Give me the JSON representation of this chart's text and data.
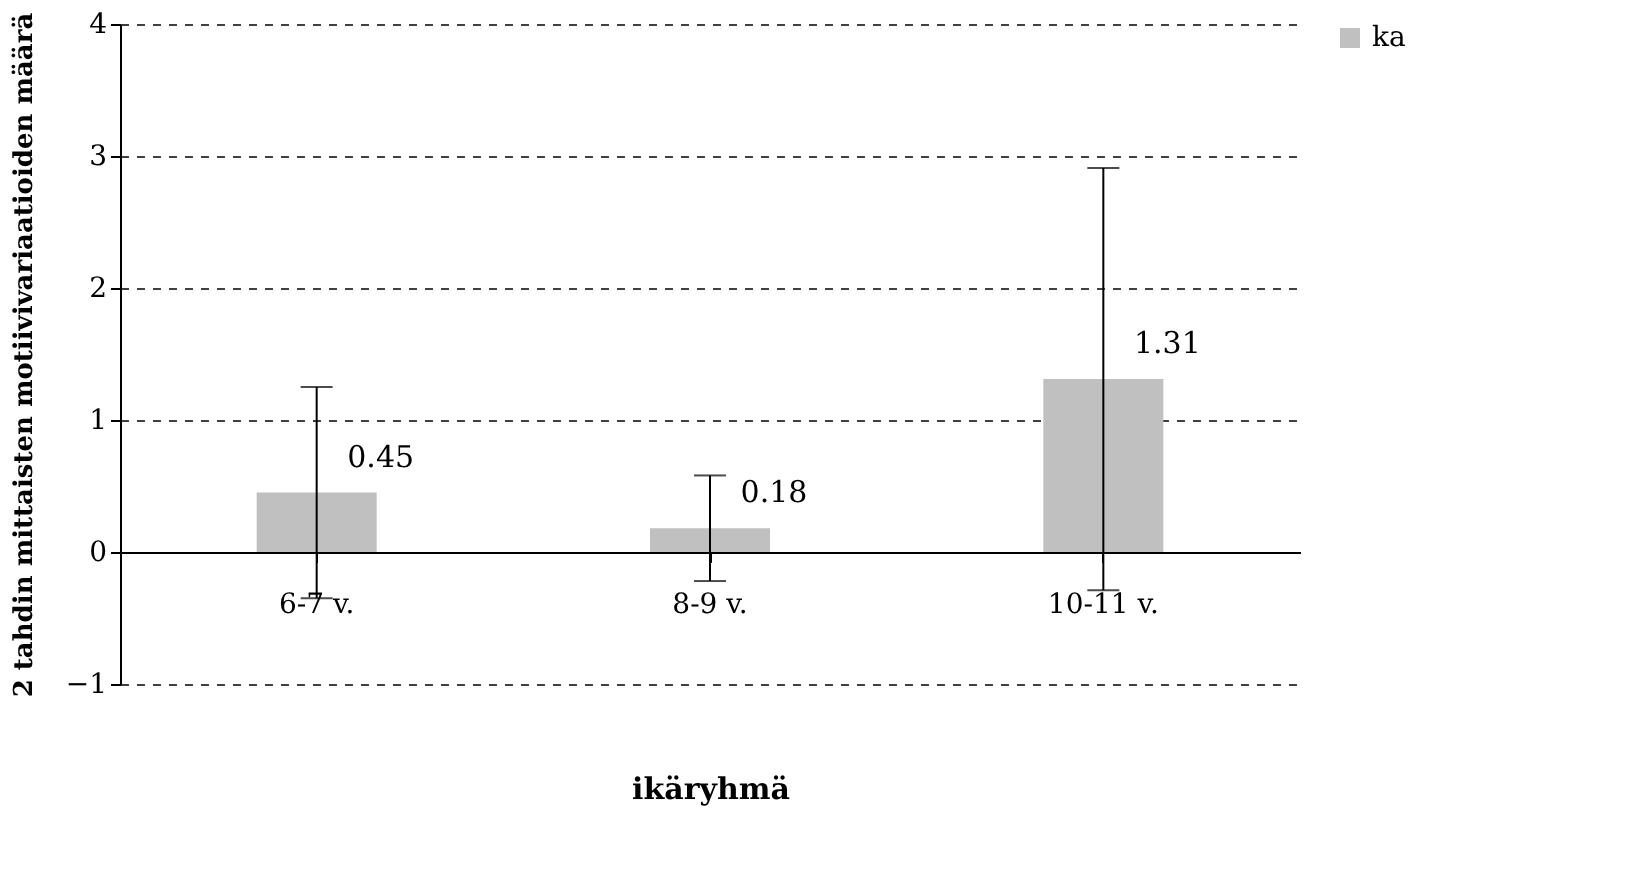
{
  "chart_data": {
    "type": "bar",
    "xlabel": "ikäryhmä",
    "ylabel": "2 tahdin mittaisten motiivivariaatioiden määrä",
    "categories": [
      "6-7 v.",
      "8-9 v.",
      "10-11 v."
    ],
    "series": [
      {
        "name": "ka",
        "color": "#c0c0c0",
        "values": [
          0.45,
          0.18,
          1.31
        ],
        "errors": [
          0.8,
          0.4,
          1.6
        ]
      }
    ],
    "ylim": [
      -1,
      4
    ],
    "yticks": [
      -1,
      0,
      1,
      2,
      3,
      4
    ],
    "grid": "y",
    "legend": "right",
    "data_labels": true
  }
}
